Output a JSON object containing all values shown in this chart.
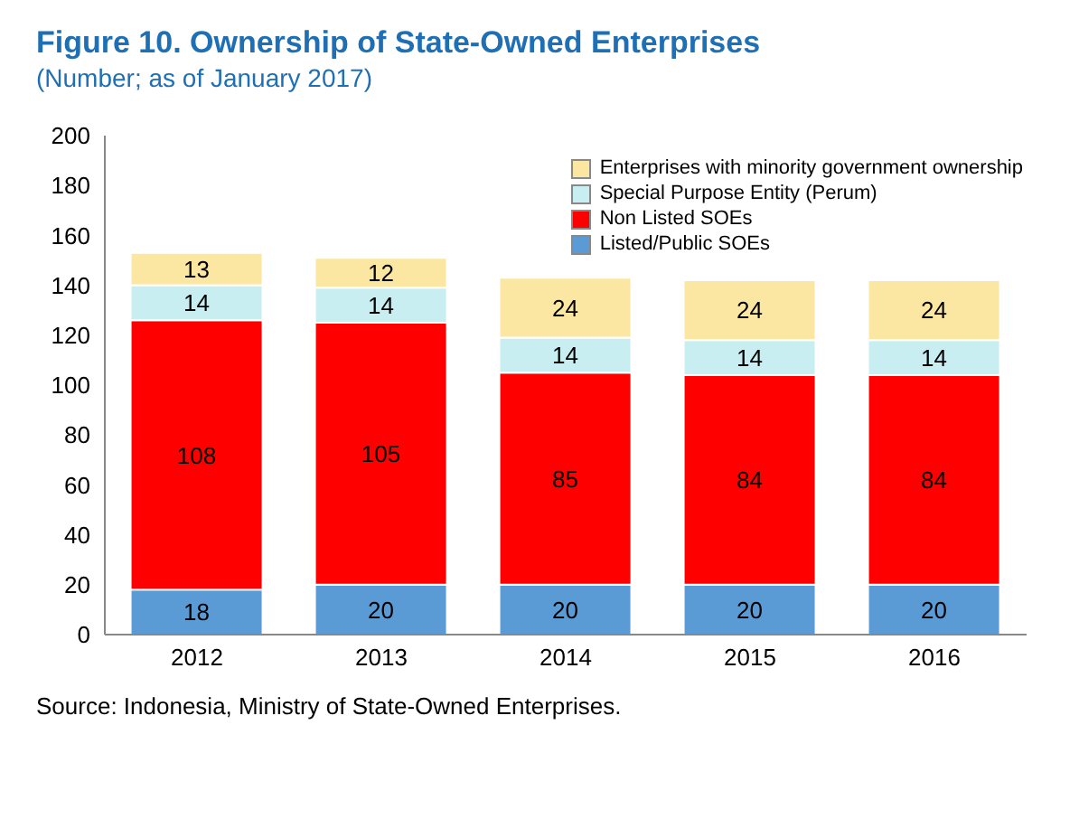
{
  "chart_data": {
    "type": "bar",
    "title": "Figure 10. Ownership of State-Owned Enterprises",
    "subtitle": "(Number; as of January 2017)",
    "categories": [
      "2012",
      "2013",
      "2014",
      "2015",
      "2016"
    ],
    "stacked": true,
    "series": [
      {
        "name": "Listed/Public SOEs",
        "color": "#5b9bd5",
        "values": [
          18,
          20,
          20,
          20,
          20
        ]
      },
      {
        "name": "Non Listed SOEs",
        "color": "#ff0000",
        "values": [
          108,
          105,
          85,
          84,
          84
        ]
      },
      {
        "name": "Special Purpose Entity (Perum)",
        "color": "#c9eef2",
        "values": [
          14,
          14,
          14,
          14,
          14
        ]
      },
      {
        "name": "Enterprises with minority government ownership",
        "color": "#fbe7a1",
        "values": [
          13,
          12,
          24,
          24,
          24
        ]
      }
    ],
    "ylim": [
      0,
      200
    ],
    "yticks": [
      0,
      20,
      40,
      60,
      80,
      100,
      120,
      140,
      160,
      180,
      200
    ],
    "legend": "top right",
    "data_labels": true,
    "annotations": [
      "Source: Indonesia, Ministry of State-Owned Enterprises."
    ]
  }
}
